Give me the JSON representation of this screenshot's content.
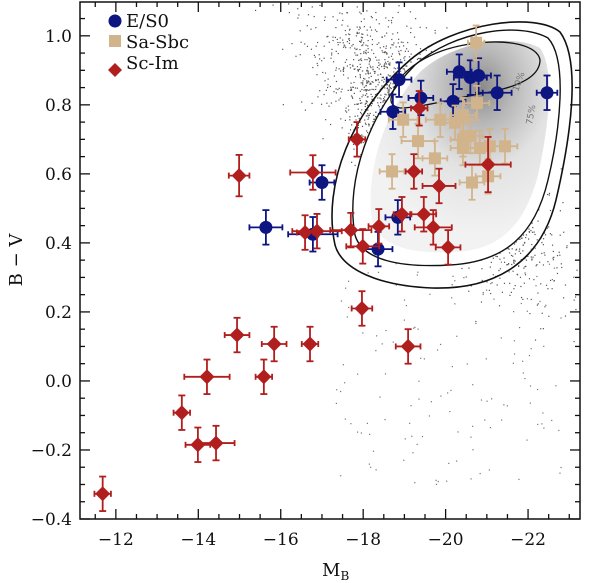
{
  "chart_data": {
    "type": "scatter",
    "title": "",
    "xlabel": "M",
    "xlabel_sub": "B",
    "ylabel": "B − V",
    "xlim": [
      -11.13,
      -23.26
    ],
    "ylim": [
      -0.4,
      1.098
    ],
    "xticks": [
      -12,
      -14,
      -16,
      -18,
      -20,
      -22
    ],
    "xtick_labels": [
      "−12",
      "−14",
      "−16",
      "−18",
      "−20",
      "−22"
    ],
    "yticks": [
      1.0,
      0.8,
      0.6,
      0.4,
      0.2,
      0.0,
      -0.2,
      -0.4
    ],
    "ytick_labels": [
      "1.0",
      "0.8",
      "0.6",
      "0.4",
      "0.2",
      "0.0",
      "−0.2",
      "−0.4"
    ],
    "grid": false,
    "legend_position": "top-left",
    "background": "comparison sample density with contours",
    "annotations": [
      "10%",
      "75%"
    ],
    "series": [
      {
        "name": "E/S0",
        "marker": "circle",
        "color": "#0d1580",
        "x": [
          -18.87,
          -20.33,
          -20.6,
          -20.8,
          -21.25,
          -22.46,
          -19.4,
          -20.18,
          -18.72,
          -17.0,
          -15.64,
          -16.78,
          -18.84,
          -18.36
        ],
        "y": [
          0.873,
          0.896,
          0.879,
          0.885,
          0.835,
          0.835,
          0.82,
          0.81,
          0.78,
          0.575,
          0.445,
          0.425,
          0.474,
          0.382
        ],
        "xerr": [
          0.3,
          0.3,
          0.4,
          0.3,
          0.35,
          0.25,
          0.3,
          0.3,
          0.3,
          0.3,
          0.4,
          0.6,
          0.3,
          0.35
        ],
        "yerr": [
          0.05,
          0.05,
          0.05,
          0.05,
          0.05,
          0.05,
          0.05,
          0.05,
          0.05,
          0.05,
          0.05,
          0.05,
          0.05,
          0.05
        ]
      },
      {
        "name": "Sa-Sbc",
        "marker": "square",
        "color": "#d2b48c",
        "x": [
          -20.74,
          -18.97,
          -19.87,
          -20.23,
          -20.42,
          -20.76,
          -19.33,
          -20.42,
          -20.6,
          -20.42,
          -20.83,
          -21.07,
          -21.44,
          -19.74,
          -18.7,
          -20.64,
          -21.03
        ],
        "y": [
          0.98,
          0.757,
          0.757,
          0.748,
          0.77,
          0.805,
          0.695,
          0.7,
          0.71,
          0.675,
          0.675,
          0.68,
          0.68,
          0.645,
          0.607,
          0.575,
          0.593
        ],
        "xerr": [
          0.2,
          0.35,
          0.35,
          0.3,
          0.3,
          0.3,
          0.4,
          0.3,
          0.3,
          0.3,
          0.3,
          0.3,
          0.3,
          0.3,
          0.3,
          0.3,
          0.3
        ],
        "yerr": [
          0.05,
          0.05,
          0.05,
          0.05,
          0.05,
          0.05,
          0.05,
          0.05,
          0.05,
          0.05,
          0.05,
          0.05,
          0.05,
          0.05,
          0.05,
          0.05,
          0.05
        ]
      },
      {
        "name": "Sc-Im",
        "marker": "diamond",
        "color": "#b01e1e",
        "x": [
          -17.85,
          -14.99,
          -16.78,
          -19.23,
          -19.36,
          -21.03,
          -19.84,
          -18.94,
          -19.47,
          -19.7,
          -16.59,
          -16.88,
          -17.7,
          -18.38,
          -17.99,
          -20.06,
          -17.97,
          -19.09,
          -14.94,
          -15.84,
          -16.71,
          -14.21,
          -15.59,
          -13.6,
          -13.99,
          -14.43,
          -11.68
        ],
        "y": [
          0.7,
          0.595,
          0.604,
          0.607,
          0.79,
          0.627,
          0.565,
          0.483,
          0.483,
          0.445,
          0.43,
          0.434,
          0.437,
          0.448,
          0.39,
          0.387,
          0.21,
          0.1,
          0.133,
          0.107,
          0.107,
          0.012,
          0.012,
          -0.092,
          -0.185,
          -0.18,
          -0.327
        ],
        "xerr": [
          0.2,
          0.25,
          0.55,
          0.2,
          0.2,
          0.55,
          0.4,
          0.2,
          0.3,
          0.45,
          0.2,
          0.6,
          0.5,
          0.25,
          0.4,
          0.3,
          0.25,
          0.3,
          0.3,
          0.3,
          0.2,
          0.55,
          0.2,
          0.2,
          0.3,
          0.45,
          0.2
        ],
        "yerr": [
          0.05,
          0.06,
          0.05,
          0.05,
          0.05,
          0.08,
          0.05,
          0.05,
          0.05,
          0.05,
          0.05,
          0.05,
          0.05,
          0.05,
          0.05,
          0.05,
          0.05,
          0.05,
          0.05,
          0.05,
          0.05,
          0.05,
          0.05,
          0.05,
          0.05,
          0.05,
          0.05
        ]
      }
    ]
  }
}
